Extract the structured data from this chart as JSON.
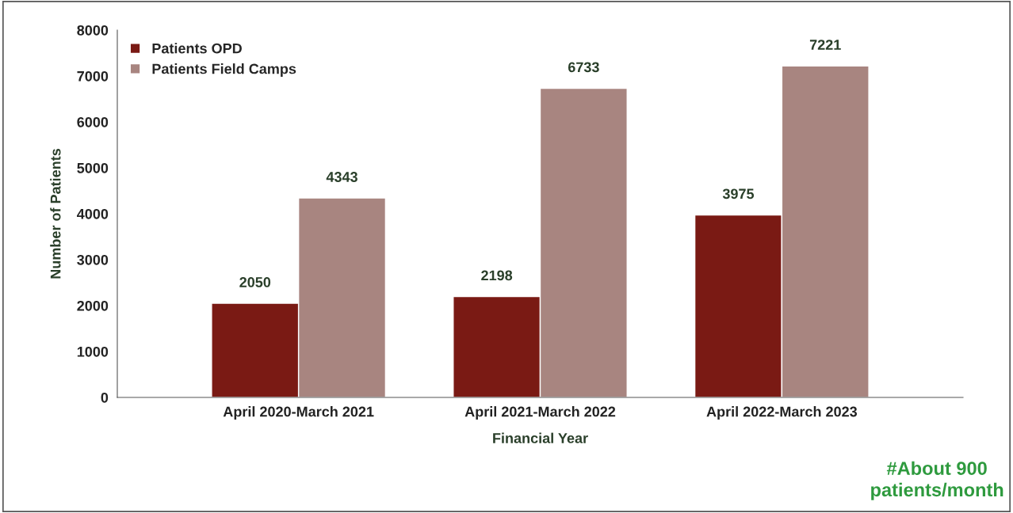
{
  "chart_data": {
    "type": "bar",
    "xlabel": "Financial Year",
    "ylabel": "Number of Patients",
    "categories": [
      "April 2020-March 2021",
      "April 2021-March 2022",
      "April 2022-March 2023"
    ],
    "series": [
      {
        "name": "Patients OPD",
        "color": "#7a1a14",
        "values": [
          2050,
          2198,
          3975
        ]
      },
      {
        "name": "Patients Field Camps",
        "color": "#a88580",
        "values": [
          4343,
          6733,
          7221
        ]
      }
    ],
    "ylim": [
      0,
      8000
    ],
    "yticks": [
      0,
      1000,
      2000,
      3000,
      4000,
      5000,
      6000,
      7000,
      8000
    ],
    "grid": false,
    "legend": "top left",
    "data_labels": true,
    "annotations": [
      "#About 900\npatients/month"
    ]
  }
}
